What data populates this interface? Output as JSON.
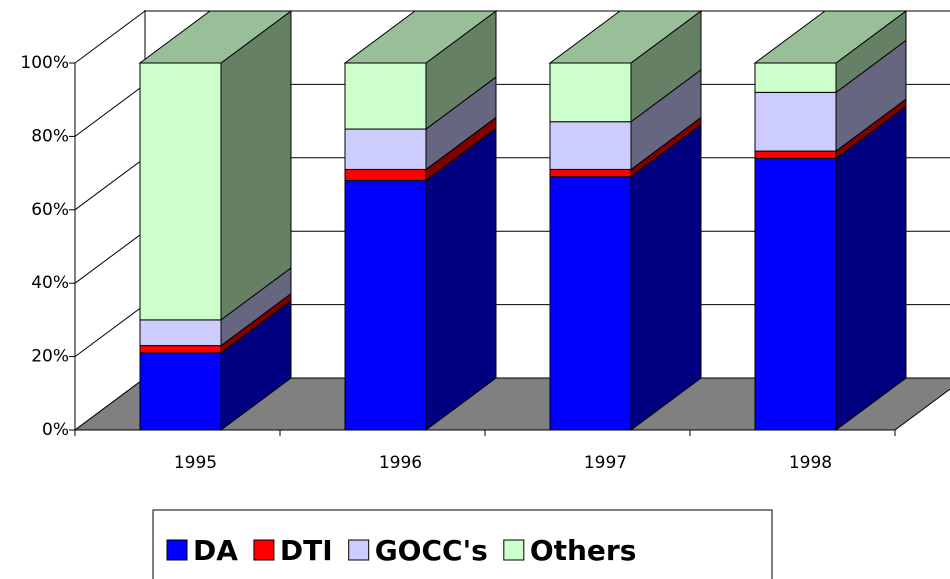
{
  "chart_data": {
    "type": "bar3d_stacked",
    "categories": [
      "1995",
      "1996",
      "1997",
      "1998"
    ],
    "series": [
      {
        "name": "DA",
        "color": "#0000ff",
        "values": [
          21,
          68,
          69,
          74
        ]
      },
      {
        "name": "DTI",
        "color": "#ff0000",
        "values": [
          2,
          3,
          2,
          2
        ]
      },
      {
        "name": "GOCC's",
        "color": "#ccccff",
        "values": [
          7,
          11,
          13,
          16
        ]
      },
      {
        "name": "Others",
        "color": "#ccffcc",
        "values": [
          70,
          18,
          16,
          8
        ]
      }
    ],
    "ylim": [
      0,
      100
    ],
    "yticks": [
      {
        "value": 0,
        "label": "0%"
      },
      {
        "value": 20,
        "label": "20%"
      },
      {
        "value": 40,
        "label": "40%"
      },
      {
        "value": 60,
        "label": "60%"
      },
      {
        "value": 80,
        "label": "80%"
      },
      {
        "value": 100,
        "label": "100%"
      }
    ],
    "grid": true,
    "legend": "bottom"
  }
}
